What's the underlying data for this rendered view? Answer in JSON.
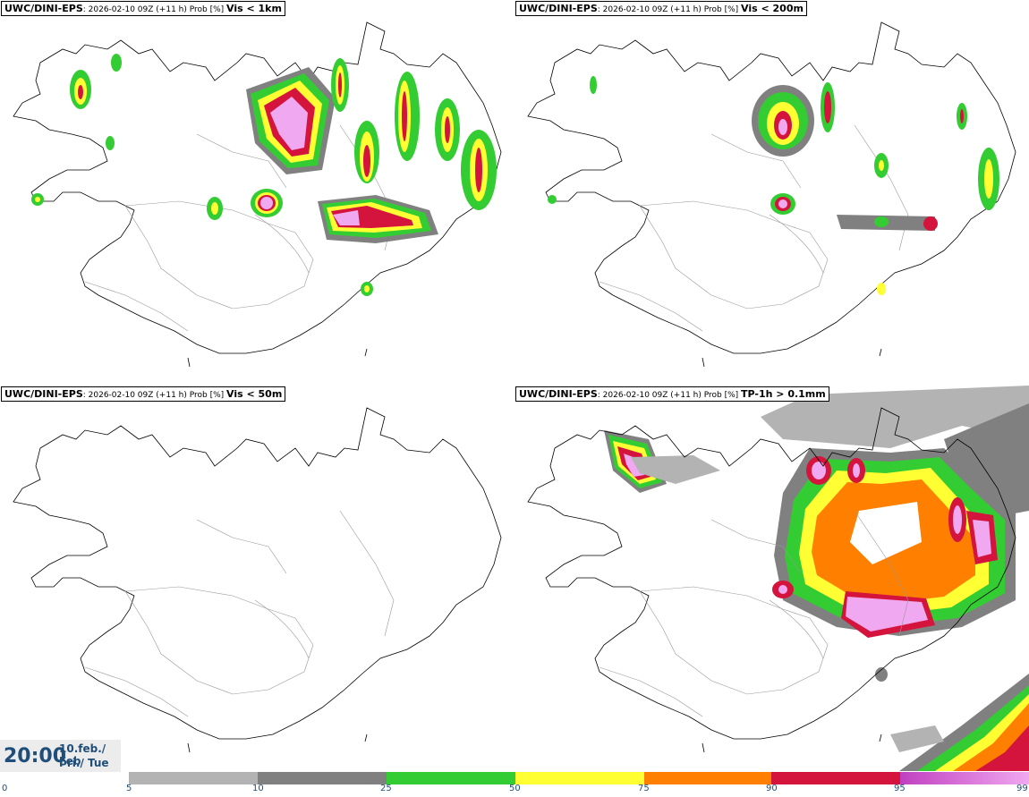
{
  "panels": [
    {
      "model": "UWC/DINI-EPS",
      "meta": ": 2026-02-10 09Z (+11 h) Prob [%] ",
      "threshold": "Vis < 1km"
    },
    {
      "model": "UWC/DINI-EPS",
      "meta": ": 2026-02-10 09Z (+11 h) Prob [%] ",
      "threshold": "Vis < 200m"
    },
    {
      "model": "UWC/DINI-EPS",
      "meta": ": 2026-02-10 09Z (+11 h) Prob [%] ",
      "threshold": "Vis < 50m"
    },
    {
      "model": "UWC/DINI-EPS",
      "meta": ": 2026-02-10 09Z (+11 h) Prob [%] ",
      "threshold": "TP-1h > 0.1mm"
    }
  ],
  "valid_time": {
    "time": "20:00",
    "date_line": "10.feb./ Feb",
    "day_line": "Þri./ Tue"
  },
  "colorbar": {
    "ticks": [
      "0",
      "5",
      "10",
      "25",
      "50",
      "75",
      "90",
      "95",
      "99"
    ],
    "colors": {
      "5-10": "#b3b3b3",
      "10-25": "#808080",
      "25-50": "#33cc33",
      "50-75": "#ffff33",
      "75-90": "#ff8000",
      "90-95": "#d4143c",
      "95-99": "#e0a0f0"
    }
  },
  "map_colors": {
    "grey_light": "#b3b3b3",
    "grey": "#808080",
    "green": "#33cc33",
    "yellow": "#ffff33",
    "orange": "#ff8000",
    "red": "#d4143c",
    "magenta": "#c040c0",
    "pink": "#f0a8f0",
    "coast": "#000000",
    "border": "#888888"
  }
}
